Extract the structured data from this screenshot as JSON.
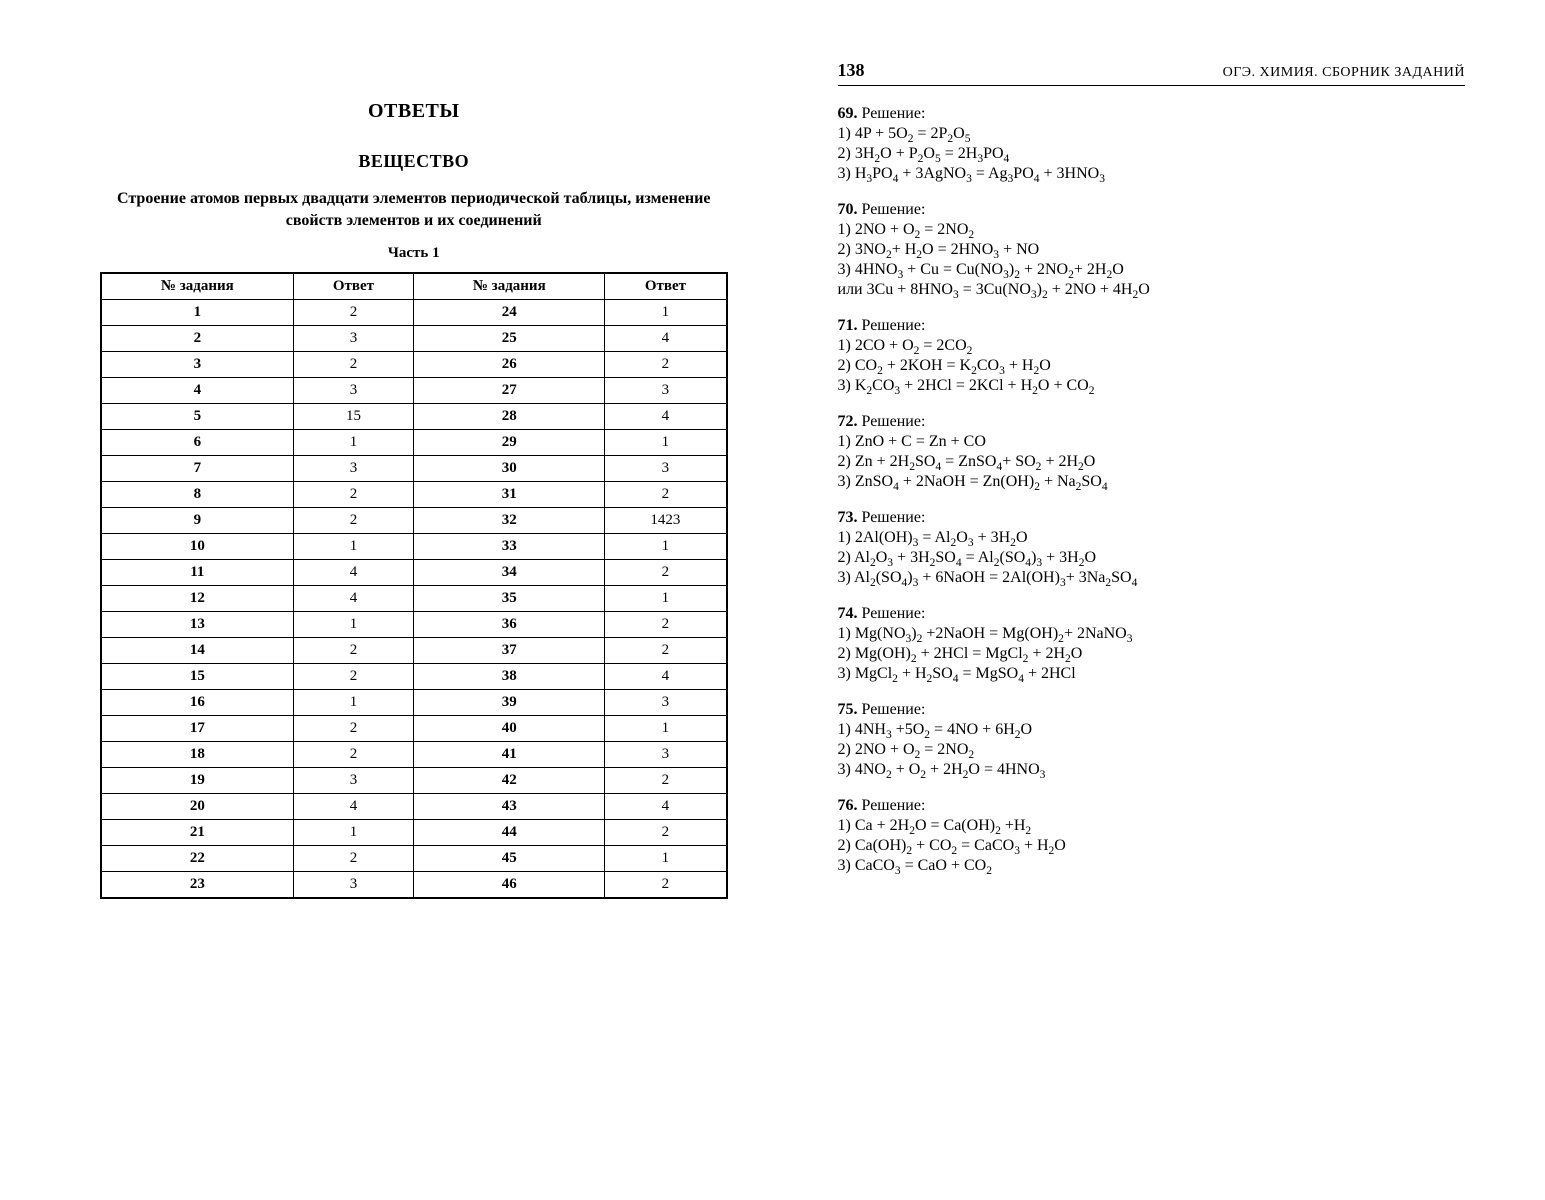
{
  "page_number": "138",
  "book_title": "ОГЭ. ХИМИЯ. СБОРНИК ЗАДАНИЙ",
  "left": {
    "title": "ОТВЕТЫ",
    "section": "ВЕЩЕСТВО",
    "subsection": "Строение атомов первых двадцати элементов периодической таблицы, изменение свойств элементов и их соединений",
    "part": "Часть 1",
    "table": {
      "headers": [
        "№ задания",
        "Ответ",
        "№ задания",
        "Ответ"
      ],
      "rows": [
        [
          "1",
          "2",
          "24",
          "1"
        ],
        [
          "2",
          "3",
          "25",
          "4"
        ],
        [
          "3",
          "2",
          "26",
          "2"
        ],
        [
          "4",
          "3",
          "27",
          "3"
        ],
        [
          "5",
          "15",
          "28",
          "4"
        ],
        [
          "6",
          "1",
          "29",
          "1"
        ],
        [
          "7",
          "3",
          "30",
          "3"
        ],
        [
          "8",
          "2",
          "31",
          "2"
        ],
        [
          "9",
          "2",
          "32",
          "1423"
        ],
        [
          "10",
          "1",
          "33",
          "1"
        ],
        [
          "11",
          "4",
          "34",
          "2"
        ],
        [
          "12",
          "4",
          "35",
          "1"
        ],
        [
          "13",
          "1",
          "36",
          "2"
        ],
        [
          "14",
          "2",
          "37",
          "2"
        ],
        [
          "15",
          "2",
          "38",
          "4"
        ],
        [
          "16",
          "1",
          "39",
          "3"
        ],
        [
          "17",
          "2",
          "40",
          "1"
        ],
        [
          "18",
          "2",
          "41",
          "3"
        ],
        [
          "19",
          "3",
          "42",
          "2"
        ],
        [
          "20",
          "4",
          "43",
          "4"
        ],
        [
          "21",
          "1",
          "44",
          "2"
        ],
        [
          "22",
          "2",
          "45",
          "1"
        ],
        [
          "23",
          "3",
          "46",
          "2"
        ]
      ]
    }
  },
  "right": {
    "solution_label": "Решение:",
    "solutions": [
      {
        "num": "69.",
        "lines": [
          "1) 4P + 5O<sub>2</sub> = 2P<sub>2</sub>O<sub>5</sub>",
          "2) 3H<sub>2</sub>O + P<sub>2</sub>O<sub>5</sub> = 2H<sub>3</sub>PO<sub>4</sub>",
          "3) H<sub>3</sub>PO<sub>4</sub> + 3AgNO<sub>3</sub> = Ag<sub>3</sub>PO<sub>4</sub> + 3HNO<sub>3</sub>"
        ]
      },
      {
        "num": "70.",
        "lines": [
          "1) 2NO + O<sub>2</sub> = 2NO<sub>2</sub>",
          "2) 3NO<sub>2</sub>+ H<sub>2</sub>O = 2HNO<sub>3</sub> + NO",
          "3) 4HNO<sub>3</sub> + Cu = Cu(NO<sub>3</sub>)<sub>2</sub> + 2NO<sub>2</sub>+ 2H<sub>2</sub>O",
          "или 3Cu + 8HNO<sub>3</sub> = 3Cu(NO<sub>3</sub>)<sub>2</sub> + 2NO + 4H<sub>2</sub>O"
        ]
      },
      {
        "num": "71.",
        "lines": [
          "1) 2CO + O<sub>2</sub> = 2CO<sub>2</sub>",
          "2) CO<sub>2</sub> + 2KOH = K<sub>2</sub>CO<sub>3</sub> + H<sub>2</sub>O",
          "3) K<sub>2</sub>CO<sub>3</sub> + 2HCl = 2KCl + H<sub>2</sub>O + CO<sub>2</sub>"
        ]
      },
      {
        "num": "72.",
        "lines": [
          "1) ZnO + C = Zn + CO",
          "2) Zn + 2H<sub>2</sub>SO<sub>4</sub> = ZnSO<sub>4</sub>+ SO<sub>2</sub> + 2H<sub>2</sub>O",
          "3) ZnSO<sub>4</sub> + 2NaOH = Zn(OH)<sub>2</sub> + Na<sub>2</sub>SO<sub>4</sub>"
        ]
      },
      {
        "num": "73.",
        "lines": [
          "1) 2Al(OH)<sub>3</sub> = Al<sub>2</sub>O<sub>3</sub> + 3H<sub>2</sub>O",
          "2) Al<sub>2</sub>O<sub>3</sub> + 3H<sub>2</sub>SO<sub>4</sub> = Al<sub>2</sub>(SO<sub>4</sub>)<sub>3</sub> + 3H<sub>2</sub>O",
          "3) Al<sub>2</sub>(SO<sub>4</sub>)<sub>3</sub> + 6NaOH = 2Al(OH)<sub>3</sub>+ 3Na<sub>2</sub>SO<sub>4</sub>"
        ]
      },
      {
        "num": "74.",
        "lines": [
          "1) Mg(NO<sub>3</sub>)<sub>2</sub> +2NaOH = Mg(OH)<sub>2</sub>+ 2NaNO<sub>3</sub>",
          "2) Mg(OH)<sub>2</sub> + 2HCl = MgCl<sub>2</sub> + 2H<sub>2</sub>O",
          "3) MgCl<sub>2</sub> + H<sub>2</sub>SO<sub>4</sub> = MgSO<sub>4</sub> + 2HCl"
        ]
      },
      {
        "num": "75.",
        "lines": [
          "1) 4NH<sub>3</sub> +5O<sub>2</sub> = 4NO + 6H<sub>2</sub>O",
          "2) 2NO + O<sub>2</sub> = 2NO<sub>2</sub>",
          "3) 4NO<sub>2</sub> + O<sub>2</sub> + 2H<sub>2</sub>O = 4HNO<sub>3</sub>"
        ]
      },
      {
        "num": "76.",
        "lines": [
          "1) Ca + 2H<sub>2</sub>O = Ca(OH)<sub>2</sub> +H<sub>2</sub>",
          "2) Ca(OH)<sub>2</sub> + CO<sub>2</sub> = CaCO<sub>3</sub> + H<sub>2</sub>O",
          "3) CaCO<sub>3</sub> = CaO + CO<sub>2</sub>"
        ]
      }
    ]
  },
  "style": {
    "font_family": "Georgia, 'Times New Roman', serif",
    "text_color": "#000000",
    "background_color": "#ffffff",
    "table_border_color": "#000000",
    "base_font_size_pt": 15,
    "heading_font_size_pt": 20
  }
}
